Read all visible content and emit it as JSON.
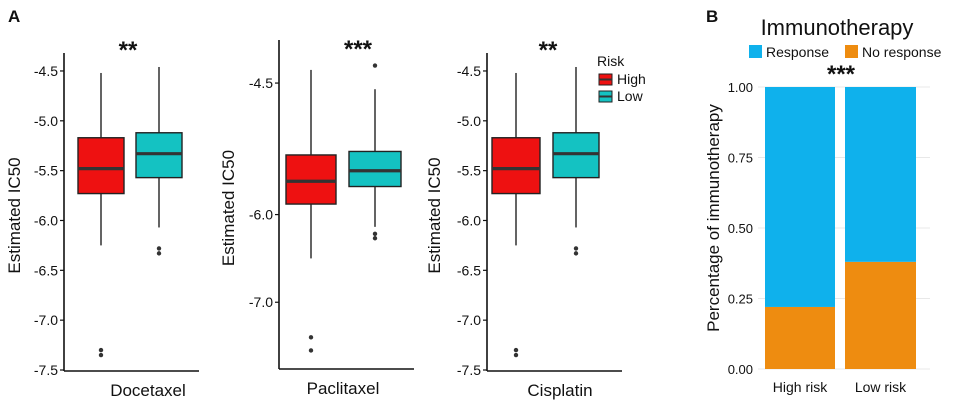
{
  "panel_labels": [
    "A",
    "B"
  ],
  "colors": {
    "high": "#ee1111",
    "low": "#14c2c2",
    "response": "#0fb1ec",
    "no_response": "#ee8c10",
    "median": "#333333",
    "box_stroke": "#222222",
    "grid": "#e8e8e8"
  },
  "legend": {
    "title": "Risk",
    "items": [
      {
        "label": "High",
        "color": "#ee1111"
      },
      {
        "label": "Low",
        "color": "#14c2c2"
      }
    ]
  },
  "chart_data": [
    {
      "type": "box",
      "panel": "A",
      "title": "**",
      "ylabel": "Estimated IC50",
      "xlabel": "Docetaxel",
      "ylim": [
        -7.5,
        -4.4
      ],
      "yticks": [
        -7.5,
        -7.0,
        -6.5,
        -6.0,
        -5.5,
        -5.0,
        -4.5
      ],
      "ytick_labels": [
        "-7.5",
        "-7.0",
        "-6.5",
        "-6.0",
        "-5.5",
        "-5.0",
        "-4.5"
      ],
      "series": [
        {
          "name": "High",
          "whisker_low": -6.25,
          "q1": -5.73,
          "median": -5.48,
          "q3": -5.17,
          "whisker_high": -4.52,
          "outliers": [
            -7.3,
            -7.35
          ]
        },
        {
          "name": "Low",
          "whisker_low": -6.07,
          "q1": -5.57,
          "median": -5.33,
          "q3": -5.12,
          "whisker_high": -4.46,
          "outliers": [
            -6.28,
            -6.33
          ]
        }
      ]
    },
    {
      "type": "box",
      "panel": "A",
      "title": "***",
      "ylabel": "Estimated IC50",
      "xlabel": "Paclitaxel",
      "ylim": [
        -7.75,
        -4.1
      ],
      "yticks": [
        -7.0,
        -6.0,
        -4.5
      ],
      "ytick_labels": [
        "-7.0",
        "-6.0",
        "-4.5"
      ],
      "series": [
        {
          "name": "High",
          "whisker_low": -6.5,
          "q1": -5.88,
          "median": -5.62,
          "q3": -5.32,
          "whisker_high": -4.35,
          "outliers": [
            -7.4,
            -7.55
          ]
        },
        {
          "name": "Low",
          "whisker_low": -6.14,
          "q1": -5.68,
          "median": -5.5,
          "q3": -5.28,
          "whisker_high": -4.57,
          "outliers": [
            -6.22,
            -6.27,
            -4.3
          ]
        }
      ]
    },
    {
      "type": "box",
      "panel": "A",
      "title": "**",
      "ylabel": "Estimated IC50",
      "xlabel": "Cisplatin",
      "ylim": [
        -7.5,
        -4.4
      ],
      "yticks": [
        -7.5,
        -7.0,
        -6.5,
        -6.0,
        -5.5,
        -5.0,
        -4.5
      ],
      "ytick_labels": [
        "-7.5",
        "-7.0",
        "-6.5",
        "-6.0",
        "-5.5",
        "-5.0",
        "-4.5"
      ],
      "series": [
        {
          "name": "High",
          "whisker_low": -6.25,
          "q1": -5.73,
          "median": -5.48,
          "q3": -5.17,
          "whisker_high": -4.52,
          "outliers": [
            -7.3,
            -7.35
          ]
        },
        {
          "name": "Low",
          "whisker_low": -6.07,
          "q1": -5.57,
          "median": -5.33,
          "q3": -5.12,
          "whisker_high": -4.46,
          "outliers": [
            -6.28,
            -6.33
          ]
        }
      ]
    },
    {
      "type": "bar",
      "stacked": true,
      "panel": "B",
      "title": "Immunotherapy",
      "annotation": "***",
      "ylabel": "Percentage of immunotherapy",
      "categories": [
        "High risk",
        "Low risk"
      ],
      "ylim": [
        0,
        1
      ],
      "yticks": [
        0,
        0.25,
        0.5,
        0.75,
        1
      ],
      "ytick_labels": [
        "0.00",
        "0.25",
        "0.50",
        "0.75",
        "1.00"
      ],
      "series": [
        {
          "name": "Response",
          "values": [
            0.78,
            0.62
          ]
        },
        {
          "name": "No response",
          "values": [
            0.22,
            0.38
          ]
        }
      ]
    }
  ]
}
